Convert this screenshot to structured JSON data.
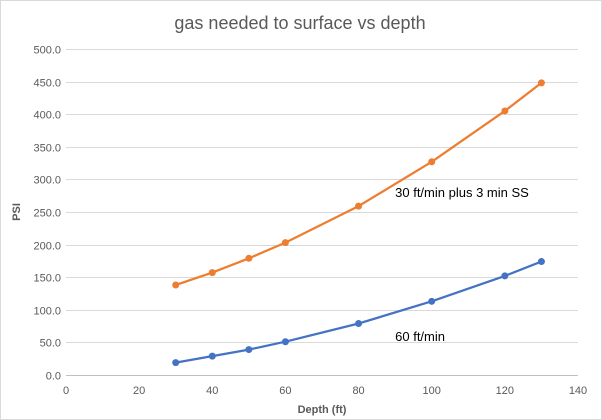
{
  "chart_data": {
    "type": "scatter",
    "mode": "lines+markers",
    "title": "gas needed to surface vs depth",
    "xlabel": "Depth (ft)",
    "ylabel": "PSI",
    "xlim": [
      0,
      140
    ],
    "ylim": [
      0,
      500
    ],
    "xticks": [
      0,
      20,
      40,
      60,
      80,
      100,
      120,
      140
    ],
    "xtick_labels": [
      "0",
      "20",
      "40",
      "60",
      "80",
      "100",
      "120",
      "140"
    ],
    "yticks": [
      0,
      50,
      100,
      150,
      200,
      250,
      300,
      350,
      400,
      450,
      500
    ],
    "ytick_labels": [
      "0.0",
      "50.0",
      "100.0",
      "150.0",
      "200.0",
      "250.0",
      "300.0",
      "350.0",
      "400.0",
      "450.0",
      "500.0"
    ],
    "grid": "horizontal",
    "legend": "none",
    "series": [
      {
        "name": "60 ft/min",
        "color": "#4472c4",
        "x": [
          30,
          40,
          50,
          60,
          80,
          100,
          120,
          130
        ],
        "y": [
          19,
          29,
          39,
          51,
          79,
          113,
          152,
          174
        ]
      },
      {
        "name": "30 ft/min plus 3 min SS",
        "color": "#ed7d31",
        "x": [
          30,
          40,
          50,
          60,
          80,
          100,
          120,
          130
        ],
        "y": [
          138,
          157,
          179,
          203,
          259,
          327,
          405,
          448
        ]
      }
    ],
    "annotations": [
      {
        "text": "30 ft/min plus 3 min SS",
        "x": 90,
        "y": 273
      },
      {
        "text": "60 ft/min",
        "x": 90,
        "y": 52
      }
    ]
  }
}
